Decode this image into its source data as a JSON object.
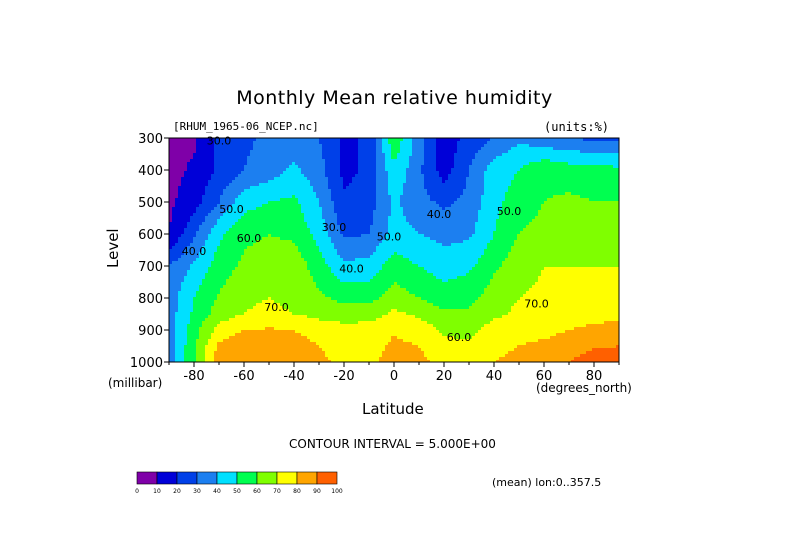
{
  "chart_data": {
    "type": "heatmap",
    "title": "Monthly Mean relative humidity",
    "source_label": "[RHUM_1965-06_NCEP.nc]",
    "units_label": "(units:%)",
    "xlabel": "Latitude",
    "x_units": "(degrees_north)",
    "ylabel": "Level",
    "y_units": "(millibar)",
    "xlim": [
      -90,
      90
    ],
    "ylim": [
      1000,
      300
    ],
    "x_ticks": [
      "-80",
      "-60",
      "-40",
      "-20",
      "0",
      "20",
      "40",
      "60",
      "80"
    ],
    "x_tick_values": [
      -80,
      -60,
      -40,
      -20,
      0,
      20,
      40,
      60,
      80
    ],
    "y_ticks": [
      "300",
      "400",
      "500",
      "600",
      "700",
      "800",
      "900",
      "1000"
    ],
    "y_tick_values": [
      300,
      400,
      500,
      600,
      700,
      800,
      900,
      1000
    ],
    "grid": false,
    "contour_interval_text": "CONTOUR INTERVAL = 5.000E+00",
    "mean_note": "(mean) lon:0..357.5",
    "contour_labels": [
      {
        "text": "30.0",
        "lat": -70,
        "lev": 320
      },
      {
        "text": "40.0",
        "lat": -80,
        "lev": 665
      },
      {
        "text": "50.0",
        "lat": -65,
        "lev": 535
      },
      {
        "text": "60.0",
        "lat": -58,
        "lev": 625
      },
      {
        "text": "70.0",
        "lat": -47,
        "lev": 840
      },
      {
        "text": "30.0",
        "lat": -24,
        "lev": 590
      },
      {
        "text": "40.0",
        "lat": -17,
        "lev": 720
      },
      {
        "text": "50.0",
        "lat": -2,
        "lev": 620
      },
      {
        "text": "40.0",
        "lat": 18,
        "lev": 550
      },
      {
        "text": "60.0",
        "lat": 26,
        "lev": 935
      },
      {
        "text": "50.0",
        "lat": 46,
        "lev": 540
      },
      {
        "text": "70.0",
        "lat": 57,
        "lev": 830
      }
    ],
    "lats": [
      -90,
      -80,
      -70,
      -60,
      -50,
      -40,
      -30,
      -20,
      -10,
      0,
      10,
      20,
      30,
      40,
      50,
      60,
      70,
      80,
      90
    ],
    "levels": [
      300,
      400,
      500,
      600,
      700,
      800,
      850,
      900,
      950,
      1000
    ],
    "values": [
      [
        5,
        8,
        22,
        28,
        32,
        34,
        30,
        18,
        22,
        58,
        35,
        14,
        24,
        30,
        38,
        33,
        30,
        28,
        28
      ],
      [
        6,
        12,
        22,
        30,
        35,
        42,
        34,
        17,
        22,
        48,
        32,
        15,
        30,
        45,
        50,
        58,
        55,
        55,
        52
      ],
      [
        8,
        16,
        30,
        46,
        50,
        52,
        40,
        22,
        25,
        42,
        33,
        28,
        33,
        47,
        55,
        60,
        62,
        60,
        60
      ],
      [
        10,
        28,
        48,
        58,
        60,
        58,
        46,
        28,
        30,
        44,
        40,
        37,
        38,
        50,
        60,
        63,
        66,
        65,
        64
      ],
      [
        30,
        42,
        55,
        62,
        64,
        66,
        55,
        42,
        44,
        55,
        50,
        45,
        48,
        58,
        66,
        70,
        70,
        70,
        70
      ],
      [
        35,
        50,
        61,
        68,
        70,
        67,
        62,
        57,
        57,
        65,
        60,
        55,
        57,
        65,
        70,
        72,
        73,
        74,
        75
      ],
      [
        35,
        52,
        65,
        70,
        73,
        70,
        67,
        66,
        66,
        72,
        68,
        62,
        62,
        68,
        72,
        74,
        75,
        77,
        78
      ],
      [
        35,
        56,
        74,
        80,
        81,
        80,
        76,
        73,
        74,
        79,
        76,
        68,
        67,
        74,
        77,
        77,
        80,
        82,
        83
      ],
      [
        35,
        58,
        82,
        86,
        85,
        84,
        80,
        76,
        76,
        82,
        80,
        73,
        72,
        77,
        80,
        82,
        86,
        89,
        90
      ],
      [
        35,
        58,
        86,
        90,
        87,
        85,
        82,
        78,
        78,
        84,
        83,
        76,
        75,
        80,
        83,
        86,
        90,
        94,
        95
      ]
    ],
    "colorbar": {
      "labels": [
        "0",
        "10",
        "20",
        "30",
        "40",
        "50",
        "60",
        "70",
        "80",
        "90",
        "100"
      ],
      "colors": [
        "#7f00a8",
        "#0000d8",
        "#0040e8",
        "#1c7ff0",
        "#00e0ff",
        "#00ff50",
        "#7fff00",
        "#ffff00",
        "#ffa500",
        "#ff6000",
        "#ff0000"
      ]
    }
  }
}
